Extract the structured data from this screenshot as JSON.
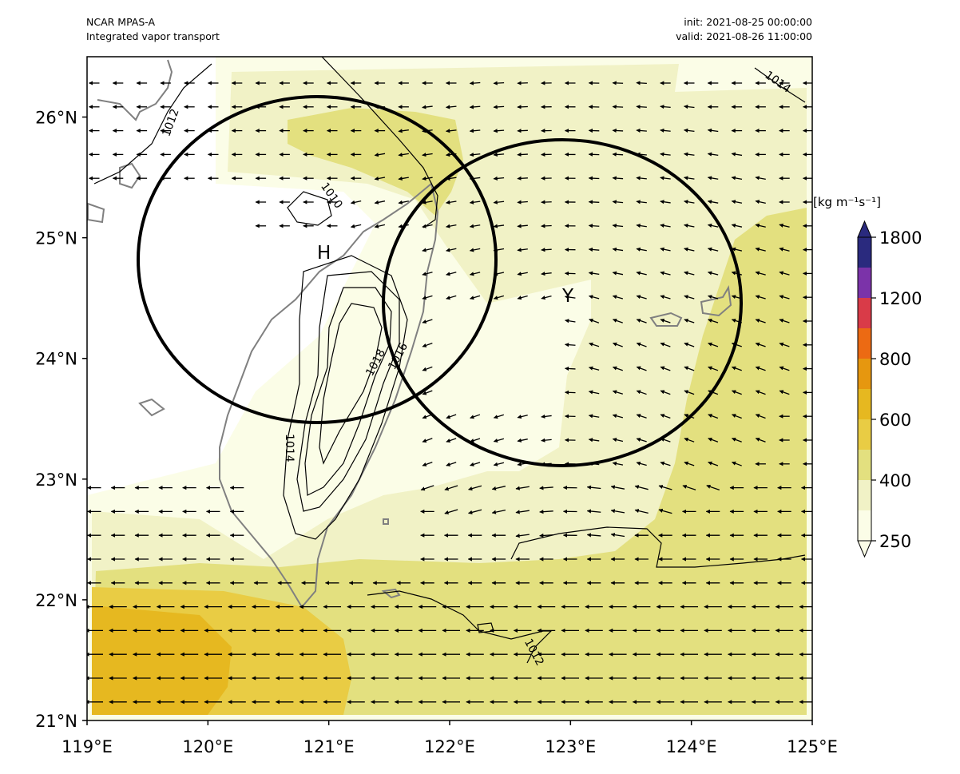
{
  "header": {
    "model": "NCAR MPAS-A",
    "field": "Integrated vapor transport",
    "init": "init: 2021-08-25 00:00:00",
    "valid": "valid: 2021-08-26 11:00:00"
  },
  "axes": {
    "lon_range": [
      119,
      125
    ],
    "lat_range": [
      21,
      26.5
    ],
    "x_ticks": [
      "119°E",
      "120°E",
      "121°E",
      "122°E",
      "123°E",
      "124°E",
      "125°E"
    ],
    "y_ticks": [
      "21°N",
      "22°N",
      "23°N",
      "24°N",
      "25°N",
      "26°N"
    ]
  },
  "markers": {
    "high": "H",
    "typhoon": "Y"
  },
  "contour_labels": [
    "1012",
    "1010",
    "1014",
    "1018",
    "1016",
    "1014",
    "1012"
  ],
  "colorbar": {
    "unit_text": "[kg m⁻¹s⁻¹]",
    "tick_labels": [
      "1800",
      "1200",
      "800",
      "600",
      "400",
      "250"
    ],
    "colors": [
      "#2a2a7e",
      "#7b33a9",
      "#d93b48",
      "#ec6a13",
      "#e6970f",
      "#e6b820",
      "#e9cc44",
      "#e3e07f",
      "#f1f2c6",
      "#fbfde7"
    ],
    "extend": "both"
  },
  "overlays": {
    "circles": [
      {
        "center_lon": 120.92,
        "center_lat": 24.83,
        "radius_deg": 1.48
      },
      {
        "center_lon": 122.96,
        "center_lat": 24.47,
        "radius_deg": 1.48
      }
    ]
  }
}
